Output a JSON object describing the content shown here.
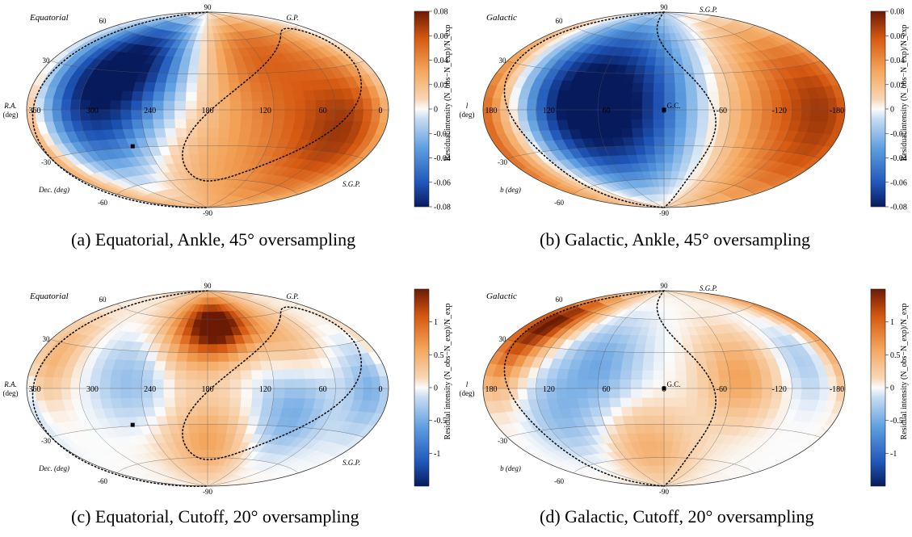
{
  "panels": [
    {
      "frame": "Equatorial",
      "caption": "(a)  Equatorial, Ankle, 45° oversampling",
      "lon_axis_name": "R.A.",
      "lon_axis_unit": "(deg)",
      "lat_axis_name": "Dec. (deg)",
      "plane_label": "G.P.",
      "pole_label": "S.G.P.",
      "center_label": "",
      "lon_ticks": [
        "360",
        "300",
        "240",
        "180",
        "120",
        "60",
        "0"
      ],
      "lat_ticks": [
        "90",
        "60",
        "30",
        "-30",
        "-60",
        "-90"
      ],
      "colorbar_title": "Residual intensity (N_obs−N_exp)/N_exp",
      "colorbar_ticks": [
        "0.08",
        "0.06",
        "0.04",
        "0.02",
        "0",
        "-0.02",
        "-0.04",
        "-0.06",
        "-0.08"
      ]
    },
    {
      "frame": "Galactic",
      "caption": "(b)  Galactic, Ankle, 45° oversampling",
      "lon_axis_name": "l",
      "lon_axis_unit": "(deg)",
      "lat_axis_name": "b (deg)",
      "plane_label": "",
      "pole_label": "S.G.P.",
      "center_label": "G.C.",
      "lon_ticks": [
        "180",
        "120",
        "60",
        "0",
        "-60",
        "-120",
        "-180"
      ],
      "lat_ticks": [
        "90",
        "60",
        "30",
        "-30",
        "-60",
        "-90"
      ],
      "colorbar_title": "Residual intensity (N_obs−N_exp)/N_exp",
      "colorbar_ticks": [
        "0.08",
        "0.06",
        "0.04",
        "0.02",
        "0",
        "-0.02",
        "-0.04",
        "-0.06",
        "-0.08"
      ]
    },
    {
      "frame": "Equatorial",
      "caption": "(c)  Equatorial, Cutoff, 20° oversampling",
      "lon_axis_name": "R.A.",
      "lon_axis_unit": "(deg)",
      "lat_axis_name": "Dec. (deg)",
      "plane_label": "G.P.",
      "pole_label": "S.G.P.",
      "center_label": "",
      "lon_ticks": [
        "360",
        "300",
        "240",
        "180",
        "120",
        "60",
        "0"
      ],
      "lat_ticks": [
        "90",
        "60",
        "30",
        "-30",
        "-60",
        "-90"
      ],
      "colorbar_title": "Residual intensity (N_obs−N_exp)/N_exp",
      "colorbar_ticks": [
        "1",
        "0.5",
        "0",
        "-0.5",
        "-1"
      ]
    },
    {
      "frame": "Galactic",
      "caption": "(d)  Galactic, Cutoff, 20° oversampling",
      "lon_axis_name": "l",
      "lon_axis_unit": "(deg)",
      "lat_axis_name": "b (deg)",
      "plane_label": "",
      "pole_label": "S.G.P.",
      "center_label": "G.C.",
      "lon_ticks": [
        "180",
        "120",
        "60",
        "0",
        "-60",
        "-120",
        "-180"
      ],
      "lat_ticks": [
        "90",
        "60",
        "30",
        "-30",
        "-60",
        "-90"
      ],
      "colorbar_title": "Residual intensity (N_obs−N_exp)/N_exp",
      "colorbar_ticks": [
        "1",
        "0.5",
        "0",
        "-0.5",
        "-1"
      ]
    }
  ],
  "colors": {
    "positive_max": "#6b1a04",
    "positive_mid": "#f08a2a",
    "zero": "#fbfbfb",
    "negative_mid": "#4a90dd",
    "negative_max": "#071a5c"
  },
  "chart_data": [
    {
      "type": "heatmap",
      "projection": "Hammer-Aitoff",
      "coordinates": "equatorial",
      "title": "Equatorial",
      "xlabel": "R.A. (deg)",
      "ylabel": "Dec. (deg)",
      "xlim": [
        360,
        0
      ],
      "ylim": [
        -90,
        90
      ],
      "color_range": [
        -0.08,
        0.08
      ],
      "hotspots": [
        {
          "lon": 290,
          "lat": 10,
          "value": -0.075,
          "width": 45
        },
        {
          "lon": 245,
          "lat": 45,
          "value": -0.045,
          "width": 30
        },
        {
          "lon": 100,
          "lat": -5,
          "value": 0.045,
          "width": 60
        },
        {
          "lon": 30,
          "lat": -15,
          "value": 0.045,
          "width": 40
        },
        {
          "lon": 140,
          "lat": 60,
          "value": 0.03,
          "width": 30
        },
        {
          "lon": 210,
          "lat": -50,
          "value": 0.015,
          "width": 30
        }
      ]
    },
    {
      "type": "heatmap",
      "projection": "Hammer-Aitoff",
      "coordinates": "galactic",
      "title": "Galactic",
      "xlabel": "l (deg)",
      "ylabel": "b (deg)",
      "xlim": [
        180,
        -180
      ],
      "ylim": [
        -90,
        90
      ],
      "color_range": [
        -0.08,
        0.08
      ],
      "hotspots": [
        {
          "lon": 40,
          "lat": 5,
          "value": -0.08,
          "width": 55
        },
        {
          "lon": 100,
          "lat": 0,
          "value": -0.04,
          "width": 40
        },
        {
          "lon": -100,
          "lat": 0,
          "value": 0.04,
          "width": 60
        },
        {
          "lon": -160,
          "lat": 10,
          "value": 0.035,
          "width": 40
        },
        {
          "lon": 160,
          "lat": -40,
          "value": 0.03,
          "width": 40
        }
      ]
    },
    {
      "type": "heatmap",
      "projection": "Hammer-Aitoff",
      "coordinates": "equatorial",
      "title": "Equatorial",
      "xlabel": "R.A. (deg)",
      "ylabel": "Dec. (deg)",
      "xlim": [
        360,
        0
      ],
      "ylim": [
        -90,
        90
      ],
      "color_range": [
        -1.5,
        1.5
      ],
      "hotspots": [
        {
          "lon": 165,
          "lat": 55,
          "value": 1.3,
          "width": 18
        },
        {
          "lon": 195,
          "lat": 45,
          "value": 0.7,
          "width": 25
        },
        {
          "lon": 180,
          "lat": -45,
          "value": 0.6,
          "width": 25
        },
        {
          "lon": 340,
          "lat": 20,
          "value": 0.5,
          "width": 20
        },
        {
          "lon": 95,
          "lat": 40,
          "value": 0.4,
          "width": 20
        },
        {
          "lon": 100,
          "lat": -20,
          "value": -0.5,
          "width": 25
        },
        {
          "lon": 250,
          "lat": 10,
          "value": -0.4,
          "width": 25
        },
        {
          "lon": 20,
          "lat": 0,
          "value": -0.5,
          "width": 20
        }
      ]
    },
    {
      "type": "heatmap",
      "projection": "Hammer-Aitoff",
      "coordinates": "galactic",
      "title": "Galactic",
      "xlabel": "l (deg)",
      "ylabel": "b (deg)",
      "xlim": [
        180,
        -180
      ],
      "ylim": [
        -90,
        90
      ],
      "color_range": [
        -1.5,
        1.5
      ],
      "hotspots": [
        {
          "lon": 150,
          "lat": 50,
          "value": 1.3,
          "width": 18
        },
        {
          "lon": 165,
          "lat": 20,
          "value": 0.7,
          "width": 20
        },
        {
          "lon": -70,
          "lat": 10,
          "value": 0.6,
          "width": 25
        },
        {
          "lon": 20,
          "lat": -50,
          "value": 0.5,
          "width": 25
        },
        {
          "lon": 60,
          "lat": 20,
          "value": -0.5,
          "width": 25
        },
        {
          "lon": 100,
          "lat": -20,
          "value": -0.4,
          "width": 25
        },
        {
          "lon": -140,
          "lat": 20,
          "value": -0.3,
          "width": 20
        }
      ]
    }
  ]
}
